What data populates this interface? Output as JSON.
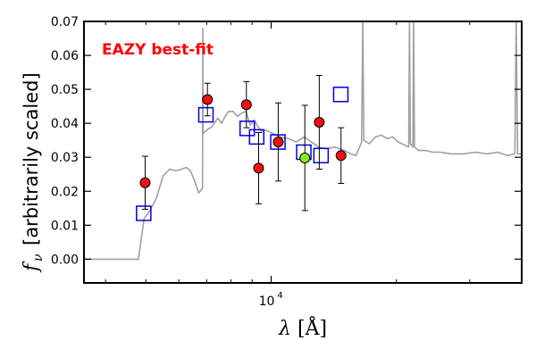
{
  "chart_data": {
    "type": "scatter",
    "annotation": "EAZY best-fit",
    "annotation_color": "#ff0000",
    "xlabel_symbol": "λ",
    "xlabel_unit": "[Å]",
    "ylabel_symbol": "f",
    "ylabel_sub": "ν",
    "ylabel_text": "[arbitrarily scaled]",
    "x_scale": "log",
    "xlim": [
      3550,
      40000
    ],
    "ylim": [
      -0.007,
      0.07
    ],
    "y_ticks": [
      0.0,
      0.01,
      0.02,
      0.03,
      0.04,
      0.05,
      0.06,
      0.07
    ],
    "y_tick_labels": [
      "0.00",
      "0.01",
      "0.02",
      "0.03",
      "0.04",
      "0.05",
      "0.06",
      "0.07"
    ],
    "x_major_tick_labels": [
      {
        "x": 10000,
        "base": "10",
        "exp": "4"
      }
    ],
    "x_minor_ticks": [
      4000,
      5000,
      6000,
      7000,
      8000,
      9000,
      20000,
      30000,
      40000
    ],
    "grid": false,
    "colors": {
      "sed_line": "#a0a0a0",
      "model_square": "#0000dd",
      "observed_point": "#ee1111",
      "highlight_point": "#88ee22",
      "errorbar": "#000000"
    },
    "series": [
      {
        "role": "template",
        "points": [
          [
            3550,
            0.0
          ],
          [
            4800,
            0.0
          ],
          [
            4950,
            0.012
          ],
          [
            5100,
            0.014
          ],
          [
            5300,
            0.018
          ],
          [
            5500,
            0.0245
          ],
          [
            5700,
            0.0265
          ],
          [
            5900,
            0.026
          ],
          [
            6100,
            0.0265
          ],
          [
            6250,
            0.027
          ],
          [
            6400,
            0.026
          ],
          [
            6550,
            0.023
          ],
          [
            6700,
            0.0195
          ],
          [
            6840,
            0.021
          ],
          [
            6850,
            0.068
          ],
          [
            6860,
            0.037
          ],
          [
            7000,
            0.038
          ],
          [
            7200,
            0.039
          ],
          [
            7450,
            0.0415
          ],
          [
            7600,
            0.04
          ],
          [
            7750,
            0.042
          ],
          [
            7900,
            0.0435
          ],
          [
            8100,
            0.0435
          ],
          [
            8300,
            0.042
          ],
          [
            8500,
            0.043
          ],
          [
            8700,
            0.0435
          ],
          [
            8900,
            0.0395
          ],
          [
            9100,
            0.041
          ],
          [
            9300,
            0.039
          ],
          [
            9500,
            0.0375
          ],
          [
            9700,
            0.038
          ],
          [
            9900,
            0.0375
          ],
          [
            10100,
            0.037
          ],
          [
            10500,
            0.036
          ],
          [
            11000,
            0.0355
          ],
          [
            11500,
            0.0345
          ],
          [
            12000,
            0.036
          ],
          [
            12500,
            0.0345
          ],
          [
            13000,
            0.033
          ],
          [
            13600,
            0.0325
          ],
          [
            14200,
            0.033
          ],
          [
            15000,
            0.032
          ],
          [
            15500,
            0.031
          ],
          [
            16000,
            0.0305
          ],
          [
            16500,
            0.0345
          ],
          [
            16600,
            0.07
          ],
          [
            16700,
            0.035
          ],
          [
            17200,
            0.034
          ],
          [
            17800,
            0.036
          ],
          [
            18400,
            0.0365
          ],
          [
            19000,
            0.0355
          ],
          [
            19600,
            0.036
          ],
          [
            20200,
            0.0345
          ],
          [
            21000,
            0.0335
          ],
          [
            21400,
            0.033
          ],
          [
            21500,
            0.07
          ],
          [
            21600,
            0.034
          ],
          [
            21900,
            0.033
          ],
          [
            22000,
            0.07
          ],
          [
            22100,
            0.033
          ],
          [
            22600,
            0.032
          ],
          [
            23500,
            0.032
          ],
          [
            24500,
            0.0315
          ],
          [
            25500,
            0.0315
          ],
          [
            27000,
            0.031
          ],
          [
            29000,
            0.031
          ],
          [
            31000,
            0.0315
          ],
          [
            33000,
            0.031
          ],
          [
            35000,
            0.0315
          ],
          [
            37000,
            0.0305
          ],
          [
            38500,
            0.031
          ],
          [
            38800,
            0.07
          ],
          [
            39100,
            0.031
          ],
          [
            40000,
            0.031
          ]
        ]
      },
      {
        "role": "model_fluxes",
        "points": [
          [
            4940,
            0.0135
          ],
          [
            6970,
            0.0425
          ],
          [
            8760,
            0.0385
          ],
          [
            9230,
            0.036
          ],
          [
            10380,
            0.0345
          ],
          [
            11980,
            0.0315
          ],
          [
            13180,
            0.0305
          ],
          [
            14700,
            0.0485
          ]
        ]
      },
      {
        "role": "observed_fluxes",
        "points": [
          {
            "x": 4980,
            "y": 0.0225,
            "err": 0.0078
          },
          {
            "x": 7030,
            "y": 0.047,
            "err": 0.0048
          },
          {
            "x": 8720,
            "y": 0.0455,
            "err": 0.0068
          },
          {
            "x": 9330,
            "y": 0.0268,
            "err": 0.0105
          },
          {
            "x": 10400,
            "y": 0.0345,
            "err": 0.0115
          },
          {
            "x": 13050,
            "y": 0.0403,
            "err": 0.0138
          },
          {
            "x": 14720,
            "y": 0.0305,
            "err": 0.0082
          }
        ]
      },
      {
        "role": "highlight_flux",
        "points": [
          {
            "x": 12050,
            "y": 0.0298,
            "err": 0.0155
          }
        ]
      }
    ]
  }
}
